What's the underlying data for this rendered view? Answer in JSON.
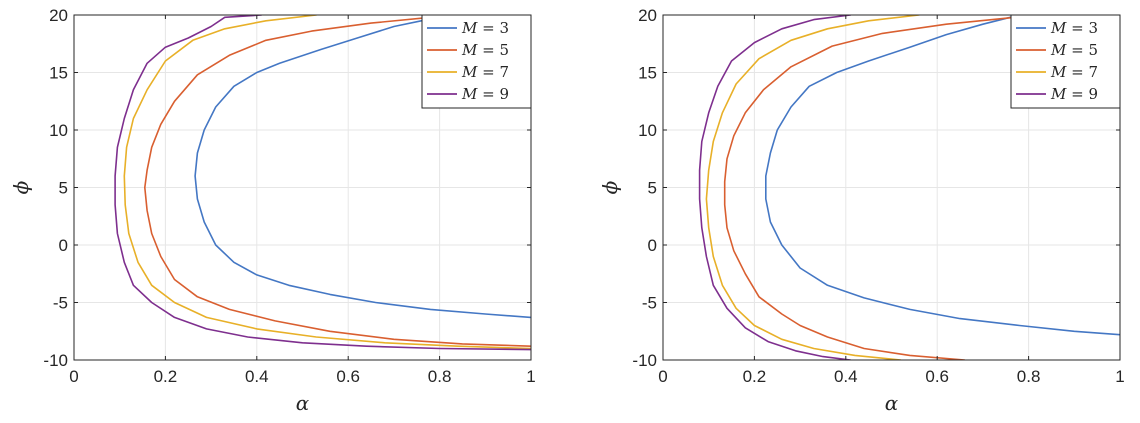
{
  "chart_data": [
    {
      "type": "line",
      "xlabel": "α",
      "ylabel": "ϕ",
      "xlim": [
        0,
        1
      ],
      "ylim": [
        -10,
        20
      ],
      "xticks": [
        0,
        0.2,
        0.4,
        0.6,
        0.8,
        1
      ],
      "xtick_labels": [
        "0",
        "0.2",
        "0.4",
        "0.6",
        "0.8",
        "1"
      ],
      "yticks": [
        -10,
        -5,
        0,
        5,
        10,
        15,
        20
      ],
      "ytick_labels": [
        "-10",
        "-5",
        "0",
        "5",
        "10",
        "15",
        "20"
      ],
      "grid": true,
      "legend": "top-right",
      "series": [
        {
          "name": "M = 3",
          "label_var": "M",
          "label_value": "3",
          "color": "#4477c4",
          "x": [
            0.76,
            0.7,
            0.62,
            0.54,
            0.45,
            0.4,
            0.35,
            0.31,
            0.285,
            0.27,
            0.265,
            0.27,
            0.285,
            0.31,
            0.35,
            0.4,
            0.47,
            0.56,
            0.66,
            0.78,
            0.9,
            1.0
          ],
          "y": [
            19.5,
            19.0,
            18.0,
            17.0,
            15.8,
            15.0,
            13.8,
            12.0,
            10.0,
            8.0,
            6.0,
            4.0,
            2.0,
            0.0,
            -1.5,
            -2.6,
            -3.5,
            -4.3,
            -5.0,
            -5.6,
            -6.0,
            -6.3
          ]
        },
        {
          "name": "M = 5",
          "label_var": "M",
          "label_value": "5",
          "color": "#d95f30",
          "x": [
            0.78,
            0.65,
            0.52,
            0.42,
            0.34,
            0.27,
            0.22,
            0.19,
            0.17,
            0.16,
            0.155,
            0.16,
            0.17,
            0.19,
            0.22,
            0.27,
            0.34,
            0.44,
            0.56,
            0.7,
            0.85,
            1.0
          ],
          "y": [
            19.8,
            19.3,
            18.6,
            17.8,
            16.5,
            14.8,
            12.5,
            10.5,
            8.5,
            6.5,
            5.0,
            3.0,
            1.0,
            -1.0,
            -3.0,
            -4.5,
            -5.6,
            -6.6,
            -7.5,
            -8.2,
            -8.6,
            -8.8
          ]
        },
        {
          "name": "M = 7",
          "label_var": "M",
          "label_value": "7",
          "color": "#e8b028",
          "x": [
            0.53,
            0.42,
            0.33,
            0.26,
            0.2,
            0.16,
            0.13,
            0.115,
            0.11,
            0.112,
            0.12,
            0.14,
            0.17,
            0.22,
            0.29,
            0.4,
            0.53,
            0.68,
            0.84,
            1.0
          ],
          "y": [
            20.0,
            19.5,
            18.8,
            17.8,
            16.0,
            13.5,
            11.0,
            8.5,
            6.0,
            3.5,
            1.0,
            -1.5,
            -3.5,
            -5.0,
            -6.3,
            -7.3,
            -8.0,
            -8.5,
            -8.8,
            -9.0
          ]
        },
        {
          "name": "M = 9",
          "label_var": "M",
          "label_value": "9",
          "color": "#7e2f8e",
          "x": [
            0.41,
            0.33,
            0.3,
            0.25,
            0.2,
            0.16,
            0.13,
            0.11,
            0.095,
            0.09,
            0.09,
            0.095,
            0.11,
            0.13,
            0.17,
            0.22,
            0.29,
            0.38,
            0.5,
            0.64,
            0.8,
            1.0
          ],
          "y": [
            20.0,
            19.8,
            19.0,
            18.0,
            17.2,
            15.8,
            13.5,
            11.0,
            8.5,
            6.0,
            3.5,
            1.0,
            -1.5,
            -3.5,
            -5.0,
            -6.3,
            -7.3,
            -8.0,
            -8.5,
            -8.8,
            -9.0,
            -9.1
          ]
        }
      ]
    },
    {
      "type": "line",
      "xlabel": "α",
      "ylabel": "ϕ",
      "xlim": [
        0,
        1
      ],
      "ylim": [
        -10,
        20
      ],
      "xticks": [
        0,
        0.2,
        0.4,
        0.6,
        0.8,
        1
      ],
      "xtick_labels": [
        "0",
        "0.2",
        "0.4",
        "0.6",
        "0.8",
        "1"
      ],
      "yticks": [
        -10,
        -5,
        0,
        5,
        10,
        15,
        20
      ],
      "ytick_labels": [
        "-10",
        "-5",
        "0",
        "5",
        "10",
        "15",
        "20"
      ],
      "grid": true,
      "legend": "top-right",
      "series": [
        {
          "name": "M = 3",
          "label_var": "M",
          "label_value": "3",
          "color": "#4477c4",
          "x": [
            0.76,
            0.7,
            0.62,
            0.54,
            0.45,
            0.38,
            0.32,
            0.28,
            0.25,
            0.235,
            0.225,
            0.225,
            0.235,
            0.26,
            0.3,
            0.36,
            0.44,
            0.54,
            0.65,
            0.78,
            0.9,
            1.0
          ],
          "y": [
            19.8,
            19.2,
            18.3,
            17.2,
            16.0,
            15.0,
            13.8,
            12.0,
            10.0,
            8.0,
            6.0,
            4.0,
            2.0,
            0.0,
            -2.0,
            -3.5,
            -4.6,
            -5.6,
            -6.4,
            -7.0,
            -7.5,
            -7.8
          ]
        },
        {
          "name": "M = 5",
          "label_var": "M",
          "label_value": "5",
          "color": "#d95f30",
          "x": [
            0.77,
            0.62,
            0.48,
            0.37,
            0.28,
            0.22,
            0.18,
            0.155,
            0.14,
            0.135,
            0.135,
            0.14,
            0.155,
            0.18,
            0.21,
            0.26,
            0.3,
            0.36,
            0.44,
            0.54,
            0.66
          ],
          "y": [
            19.8,
            19.2,
            18.4,
            17.3,
            15.5,
            13.5,
            11.5,
            9.5,
            7.5,
            5.5,
            3.5,
            1.5,
            -0.5,
            -2.5,
            -4.5,
            -6.0,
            -7.0,
            -8.0,
            -9.0,
            -9.6,
            -10.0
          ]
        },
        {
          "name": "M = 7",
          "label_var": "M",
          "label_value": "7",
          "color": "#e8b028",
          "x": [
            0.56,
            0.45,
            0.36,
            0.28,
            0.21,
            0.16,
            0.13,
            0.11,
            0.1,
            0.095,
            0.1,
            0.11,
            0.13,
            0.16,
            0.2,
            0.26,
            0.33,
            0.42,
            0.52
          ],
          "y": [
            20.0,
            19.5,
            18.8,
            17.8,
            16.2,
            14.0,
            11.5,
            9.0,
            6.5,
            4.0,
            1.5,
            -1.0,
            -3.5,
            -5.5,
            -7.0,
            -8.2,
            -9.0,
            -9.6,
            -10.0
          ]
        },
        {
          "name": "M = 9",
          "label_var": "M",
          "label_value": "9",
          "color": "#7e2f8e",
          "x": [
            0.41,
            0.33,
            0.26,
            0.2,
            0.15,
            0.12,
            0.1,
            0.085,
            0.08,
            0.08,
            0.085,
            0.095,
            0.11,
            0.14,
            0.18,
            0.23,
            0.29,
            0.35,
            0.41
          ],
          "y": [
            20.0,
            19.6,
            18.8,
            17.6,
            16.0,
            13.8,
            11.5,
            9.0,
            6.5,
            4.0,
            1.5,
            -1.0,
            -3.5,
            -5.5,
            -7.2,
            -8.4,
            -9.2,
            -9.7,
            -10.0
          ]
        }
      ]
    }
  ]
}
